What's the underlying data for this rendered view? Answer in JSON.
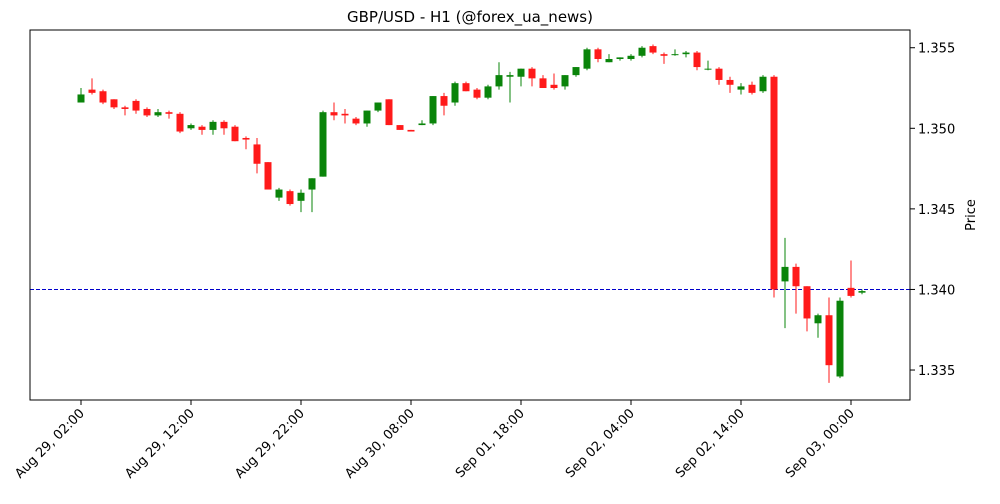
{
  "chart_data": {
    "type": "candlestick",
    "title": "GBP/USD - H1 (@forex_ua_news)",
    "y_label": "Price",
    "categories": [
      "Aug 29, 02:00",
      null,
      null,
      null,
      null,
      null,
      null,
      null,
      null,
      null,
      "Aug 29, 12:00",
      null,
      null,
      null,
      null,
      null,
      null,
      null,
      null,
      null,
      "Aug 29, 22:00",
      null,
      null,
      null,
      null,
      null,
      null,
      null,
      null,
      null,
      "Aug 30, 08:00",
      null,
      null,
      null,
      null,
      null,
      null,
      null,
      null,
      null,
      "Sep 01, 18:00",
      null,
      null,
      null,
      null,
      null,
      null,
      null,
      null,
      null,
      "Sep 02, 04:00",
      null,
      null,
      null,
      null,
      null,
      null,
      null,
      null,
      null,
      "Sep 02, 14:00",
      null,
      null,
      null,
      null,
      null,
      null,
      null,
      null,
      null,
      "Sep 03, 00:00",
      null
    ],
    "series": {
      "open": [
        1.3516,
        1.3524,
        1.3523,
        1.3518,
        1.3513,
        1.3517,
        1.3512,
        1.3508,
        1.351,
        1.3509,
        1.35,
        1.3501,
        1.3499,
        1.3504,
        1.3501,
        1.3494,
        1.349,
        1.3479,
        1.3457,
        1.3461,
        1.3455,
        1.3462,
        1.347,
        1.351,
        1.3509,
        1.3506,
        1.3503,
        1.3511,
        1.3518,
        1.3502,
        1.3499,
        1.3502,
        1.3503,
        1.352,
        1.3516,
        1.3528,
        1.3524,
        1.3519,
        1.3526,
        1.3532,
        1.3532,
        1.3537,
        1.3531,
        1.3527,
        1.3526,
        1.3533,
        1.3537,
        1.3549,
        1.3541,
        1.3543,
        1.3543,
        1.3545,
        1.3551,
        1.3546,
        1.3546,
        1.3546,
        1.3547,
        1.3537,
        1.3537,
        1.353,
        1.3524,
        1.3527,
        1.3523,
        1.3532,
        1.3405,
        1.3414,
        1.3402,
        1.3379,
        1.3384,
        1.3346,
        1.3401,
        1.3398
      ],
      "high": [
        1.3525,
        1.3531,
        1.3524,
        1.3518,
        1.3514,
        1.3518,
        1.3513,
        1.3512,
        1.3511,
        1.351,
        1.3503,
        1.3502,
        1.3505,
        1.3505,
        1.3502,
        1.3495,
        1.3494,
        1.3479,
        1.3463,
        1.3462,
        1.3462,
        1.3469,
        1.3511,
        1.3516,
        1.3512,
        1.3507,
        1.3511,
        1.3516,
        1.3518,
        1.3502,
        1.3499,
        1.3505,
        1.352,
        1.3522,
        1.3529,
        1.3529,
        1.3525,
        1.3527,
        1.3541,
        1.3535,
        1.3537,
        1.3538,
        1.3533,
        1.3534,
        1.3533,
        1.3538,
        1.355,
        1.355,
        1.3546,
        1.3544,
        1.3546,
        1.3551,
        1.3552,
        1.3547,
        1.3549,
        1.3548,
        1.3548,
        1.3542,
        1.3538,
        1.3532,
        1.3528,
        1.3529,
        1.3533,
        1.3533,
        1.3432,
        1.3416,
        1.3402,
        1.3385,
        1.3395,
        1.3395,
        1.3418,
        1.34
      ],
      "low": [
        1.3516,
        1.3521,
        1.3515,
        1.3512,
        1.3508,
        1.3509,
        1.3507,
        1.3507,
        1.3506,
        1.3497,
        1.3499,
        1.3496,
        1.3496,
        1.3496,
        1.3492,
        1.3487,
        1.3472,
        1.3462,
        1.3455,
        1.3452,
        1.3448,
        1.3448,
        1.347,
        1.3505,
        1.3503,
        1.3502,
        1.3501,
        1.351,
        1.3502,
        1.3499,
        1.3498,
        1.3502,
        1.3502,
        1.3508,
        1.3514,
        1.3523,
        1.3518,
        1.3518,
        1.3524,
        1.3516,
        1.3526,
        1.3526,
        1.3525,
        1.3524,
        1.3524,
        1.3532,
        1.3536,
        1.3541,
        1.3541,
        1.3542,
        1.3542,
        1.3544,
        1.3546,
        1.354,
        1.3545,
        1.3544,
        1.3536,
        1.3536,
        1.3527,
        1.3522,
        1.3521,
        1.3521,
        1.3522,
        1.3395,
        1.3376,
        1.3385,
        1.3374,
        1.337,
        1.3342,
        1.3345,
        1.3395,
        1.3397
      ],
      "close": [
        1.3521,
        1.3522,
        1.3516,
        1.3513,
        1.3512,
        1.3511,
        1.3508,
        1.351,
        1.3509,
        1.3498,
        1.3502,
        1.3499,
        1.3504,
        1.35,
        1.3492,
        1.3493,
        1.3478,
        1.3462,
        1.3462,
        1.3453,
        1.346,
        1.3469,
        1.351,
        1.3508,
        1.3508,
        1.3503,
        1.3511,
        1.3516,
        1.3502,
        1.3499,
        1.3498,
        1.3503,
        1.352,
        1.3514,
        1.3528,
        1.3523,
        1.3519,
        1.3526,
        1.3533,
        1.3533,
        1.3537,
        1.3531,
        1.3525,
        1.3525,
        1.3533,
        1.3538,
        1.3549,
        1.3543,
        1.3543,
        1.3544,
        1.3545,
        1.355,
        1.3547,
        1.3545,
        1.3546,
        1.3547,
        1.3538,
        1.3537,
        1.353,
        1.3527,
        1.3526,
        1.3522,
        1.3532,
        1.34,
        1.3414,
        1.3402,
        1.3382,
        1.3384,
        1.3353,
        1.3393,
        1.3396,
        1.3399
      ]
    },
    "up_color": "#0a840a",
    "down_color": "#ff1a1a",
    "hline": {
      "value": 1.34,
      "color": "#0000cc"
    },
    "ylim": [
      1.33314,
      1.3561
    ],
    "yticks": [
      1.335,
      {
        "value": 1.34,
        "label": "1.340"
      },
      1.345,
      {
        "value": 1.35,
        "label": "1.350"
      },
      1.355
    ],
    "y_axis_side": "right"
  }
}
